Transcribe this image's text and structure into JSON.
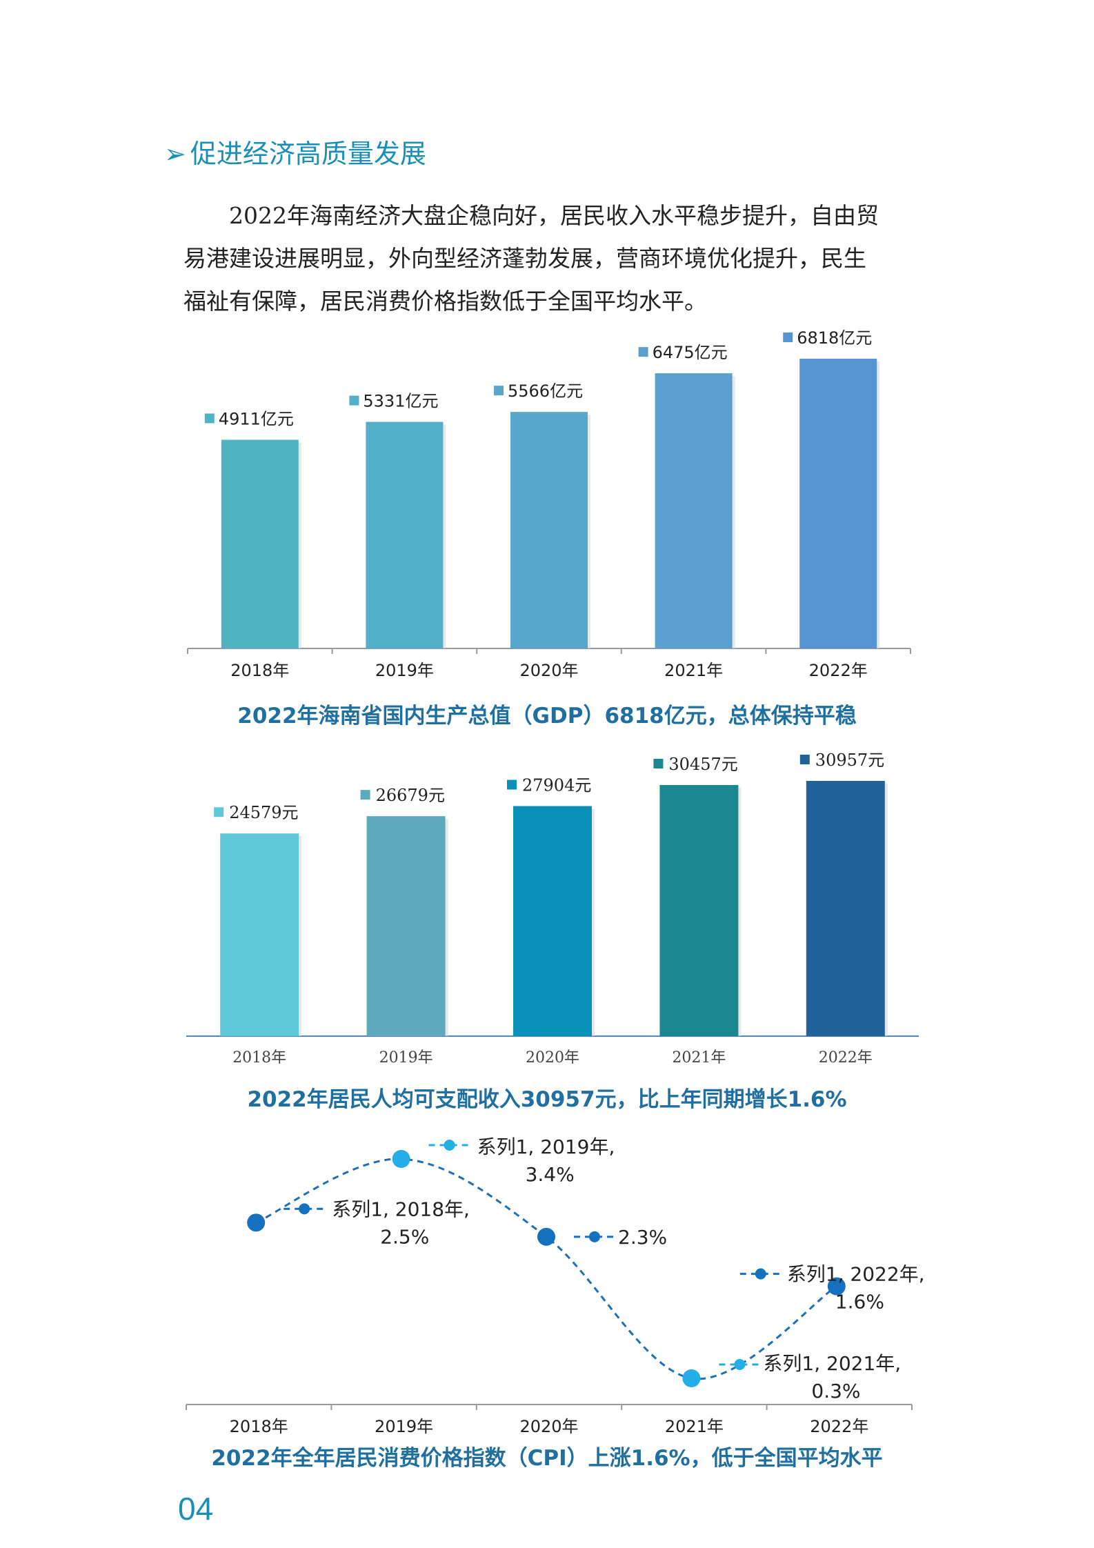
{
  "section": {
    "heading": "促进经济高质量发展",
    "paragraph_lines": [
      "2022年海南经济大盘企稳向好，居民收入水平稳步提升，自由贸",
      "易港建设进展明显，外向型经济蓬勃发展，营商环境优化提升，民生",
      "福祉有保障，居民消费价格指数低于全国平均水平。"
    ]
  },
  "chart_data": [
    {
      "type": "bar",
      "categories": [
        "2018年",
        "2019年",
        "2020年",
        "2021年",
        "2022年"
      ],
      "values": [
        4911,
        5331,
        5566,
        6475,
        6818
      ],
      "data_labels": [
        "4911亿元",
        "5331亿元",
        "5566亿元",
        "6475亿元",
        "6818亿元"
      ],
      "title": "2022年海南省国内生产总值（GDP）6818亿元，总体保持平稳",
      "ylim": [
        0,
        7000
      ],
      "colors": [
        "#4fb3c3",
        "#52aec9",
        "#57a7cc",
        "#5a9fd0",
        "#5594d0"
      ]
    },
    {
      "type": "bar",
      "categories": [
        "2018年",
        "2019年",
        "2020年",
        "2021年",
        "2022年"
      ],
      "values": [
        24579,
        26679,
        27904,
        30457,
        30957
      ],
      "data_labels": [
        "24579元",
        "26679元",
        "27904元",
        "30457元",
        "30957元"
      ],
      "title": "2022年居民人均可支配收入30957元，比上年同期增长1.6%",
      "ylim": [
        0,
        31500
      ],
      "colors": [
        "#5ec8d8",
        "#5eaabd",
        "#0991ba",
        "#19888f",
        "#22629a"
      ]
    },
    {
      "type": "line",
      "categories": [
        "2018年",
        "2019年",
        "2020年",
        "2021年",
        "2022年"
      ],
      "values": [
        2.5,
        3.4,
        2.3,
        0.3,
        1.6
      ],
      "series_name": "系列1",
      "data_labels": [
        [
          "系列1, 2018年,",
          "2.5%"
        ],
        [
          "系列1, 2019年,",
          "3.4%"
        ],
        [
          "2.3%"
        ],
        [
          "系列1, 2021年,",
          "0.3%"
        ],
        [
          "系列1, 2022年,",
          "1.6%"
        ]
      ],
      "title": "2022年全年居民消费价格指数（CPI）上涨1.6%，低于全国平均水平",
      "ylim": [
        0,
        3.8
      ],
      "colors": [
        "#1570c0",
        "#23aee8",
        "#1570c0",
        "#23aee8",
        "#1570c0"
      ]
    }
  ],
  "page_number": "04"
}
